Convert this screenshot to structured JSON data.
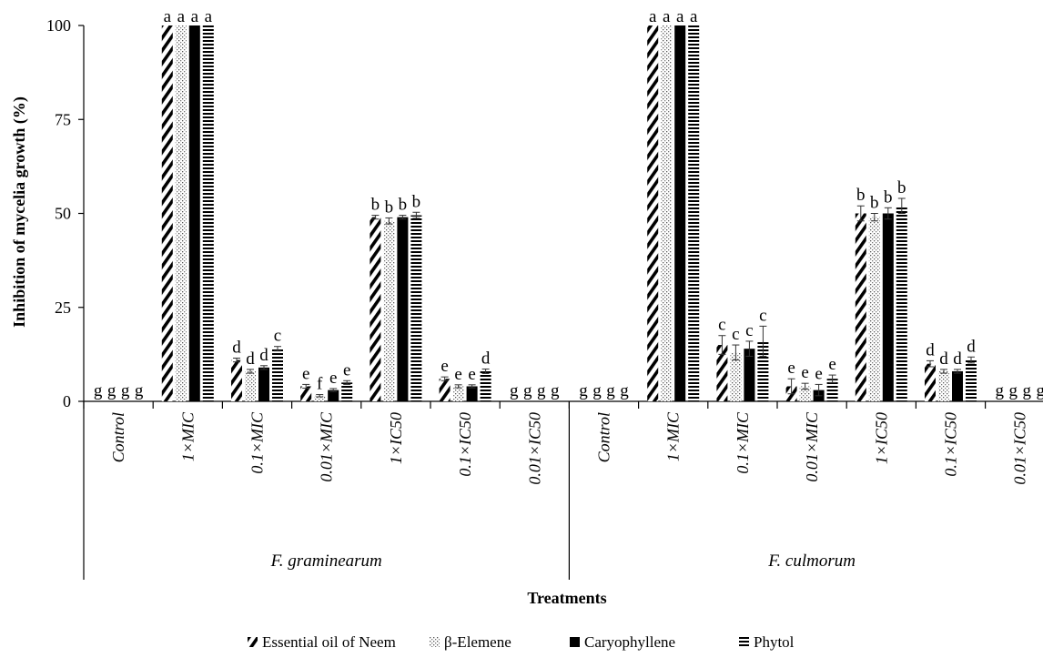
{
  "chart_data": {
    "type": "bar",
    "ylabel": "Inhibition of mycelia growth (%)",
    "xlabel": "Treatments",
    "ylim": [
      0,
      100
    ],
    "yticks": [
      0,
      25,
      50,
      75,
      100
    ],
    "grid": false,
    "legend_position": "bottom",
    "groups": [
      {
        "name": "F. graminearum",
        "categories": [
          "Control",
          "1×MIC",
          "0.1×MIC",
          "0.01×MIC",
          "1×IC50",
          "0.1×IC50",
          "0.01×IC50"
        ],
        "series": [
          {
            "name": "Essential oil of Neem",
            "values": [
              0,
              100,
              11,
              4,
              49,
              6,
              0
            ],
            "errors": [
              0,
              0,
              0.5,
              0.5,
              0.5,
              0.5,
              0
            ],
            "letters": [
              "g",
              "a",
              "d",
              "e",
              "b",
              "e",
              "g"
            ]
          },
          {
            "name": "β-Elemene",
            "values": [
              0,
              100,
              8,
              1.5,
              48,
              4,
              0
            ],
            "errors": [
              0,
              0,
              0.5,
              0.3,
              0.8,
              0.4,
              0
            ],
            "letters": [
              "g",
              "a",
              "d",
              "f",
              "b",
              "e",
              "g"
            ]
          },
          {
            "name": "Caryophyllene",
            "values": [
              0,
              100,
              9,
              3,
              49,
              4,
              0
            ],
            "errors": [
              0,
              0,
              0.5,
              0.4,
              0.5,
              0.4,
              0
            ],
            "letters": [
              "g",
              "a",
              "d",
              "e",
              "b",
              "e",
              "g"
            ]
          },
          {
            "name": "Phytol",
            "values": [
              0,
              100,
              14,
              5,
              49.5,
              8,
              0
            ],
            "errors": [
              0,
              0,
              0.6,
              0.5,
              0.8,
              0.6,
              0
            ],
            "letters": [
              "g",
              "a",
              "c",
              "e",
              "b",
              "d",
              "g"
            ]
          }
        ]
      },
      {
        "name": "F. culmorum",
        "categories": [
          "Control",
          "1×MIC",
          "0.1×MIC",
          "0.01×MIC",
          "1×IC50",
          "0.1×IC50",
          "0.01×IC50"
        ],
        "series": [
          {
            "name": "Essential oil of Neem",
            "values": [
              0,
              100,
              15,
              4,
              50,
              10,
              0
            ],
            "errors": [
              0,
              0,
              2.5,
              2,
              2,
              0.8,
              0
            ],
            "letters": [
              "g",
              "a",
              "c",
              "e",
              "b",
              "d",
              "g"
            ]
          },
          {
            "name": "β-Elemene",
            "values": [
              0,
              100,
              13,
              4,
              49,
              8,
              0
            ],
            "errors": [
              0,
              0,
              2,
              0.8,
              1,
              0.5,
              0
            ],
            "letters": [
              "g",
              "a",
              "c",
              "e",
              "b",
              "d",
              "g"
            ]
          },
          {
            "name": "Caryophyllene",
            "values": [
              0,
              100,
              14,
              3,
              50,
              8,
              0
            ],
            "errors": [
              0,
              0,
              2,
              1.5,
              1.5,
              0.5,
              0
            ],
            "letters": [
              "g",
              "a",
              "c",
              "e",
              "b",
              "d",
              "g"
            ]
          },
          {
            "name": "Phytol",
            "values": [
              0,
              100,
              16,
              6,
              52,
              11,
              0
            ],
            "errors": [
              0,
              0,
              4,
              1,
              2,
              0.8,
              0
            ],
            "letters": [
              "g",
              "a",
              "c",
              "e",
              "b",
              "d",
              "g"
            ]
          }
        ]
      }
    ]
  }
}
